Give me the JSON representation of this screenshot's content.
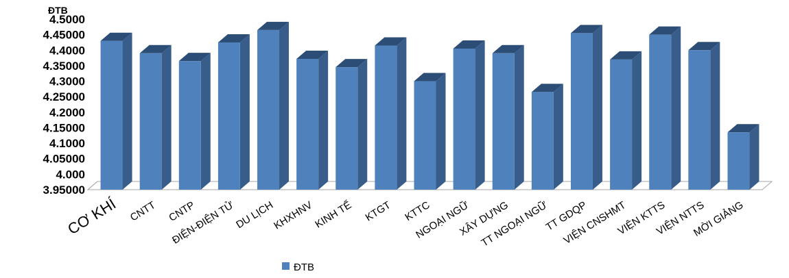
{
  "chart_data": {
    "type": "bar",
    "ylabel": "ĐTB",
    "ylim": [
      3.95,
      4.5
    ],
    "yticks": [
      "3.95000",
      "4.000",
      "4.05000",
      "4.1000",
      "4.15000",
      "4.2000",
      "4.25000",
      "4.3000",
      "4.35000",
      "4.4000",
      "4.45000",
      "4.5000"
    ],
    "ytick_values": [
      3.95,
      4.0,
      4.05,
      4.1,
      4.15,
      4.2,
      4.25,
      4.3,
      4.35,
      4.4,
      4.45,
      4.5
    ],
    "categories": [
      "CƠ KHÍ",
      "CNTT",
      "CNTP",
      "ĐIỆN-ĐIỆN TỬ",
      "DU LỊCH",
      "KHXHNV",
      "KINH TẾ",
      "KTGT",
      "KTTC",
      "NGOẠI NGỮ",
      "XÂY DỰNG",
      "TT NGOẠI NGỮ",
      "TT GDQP",
      "VIỆN CNSHMT",
      "VIỆN KTTS",
      "VIỆN NTTS",
      "MỜI GIẢNG"
    ],
    "series": [
      {
        "name": "ĐTB",
        "values": [
          4.43,
          4.39,
          4.365,
          4.425,
          4.465,
          4.372,
          4.345,
          4.415,
          4.3,
          4.405,
          4.39,
          4.265,
          4.455,
          4.37,
          4.45,
          4.4,
          4.135
        ],
        "color": "#4F81BD"
      }
    ],
    "legend": "bottom-left",
    "grid": false
  }
}
